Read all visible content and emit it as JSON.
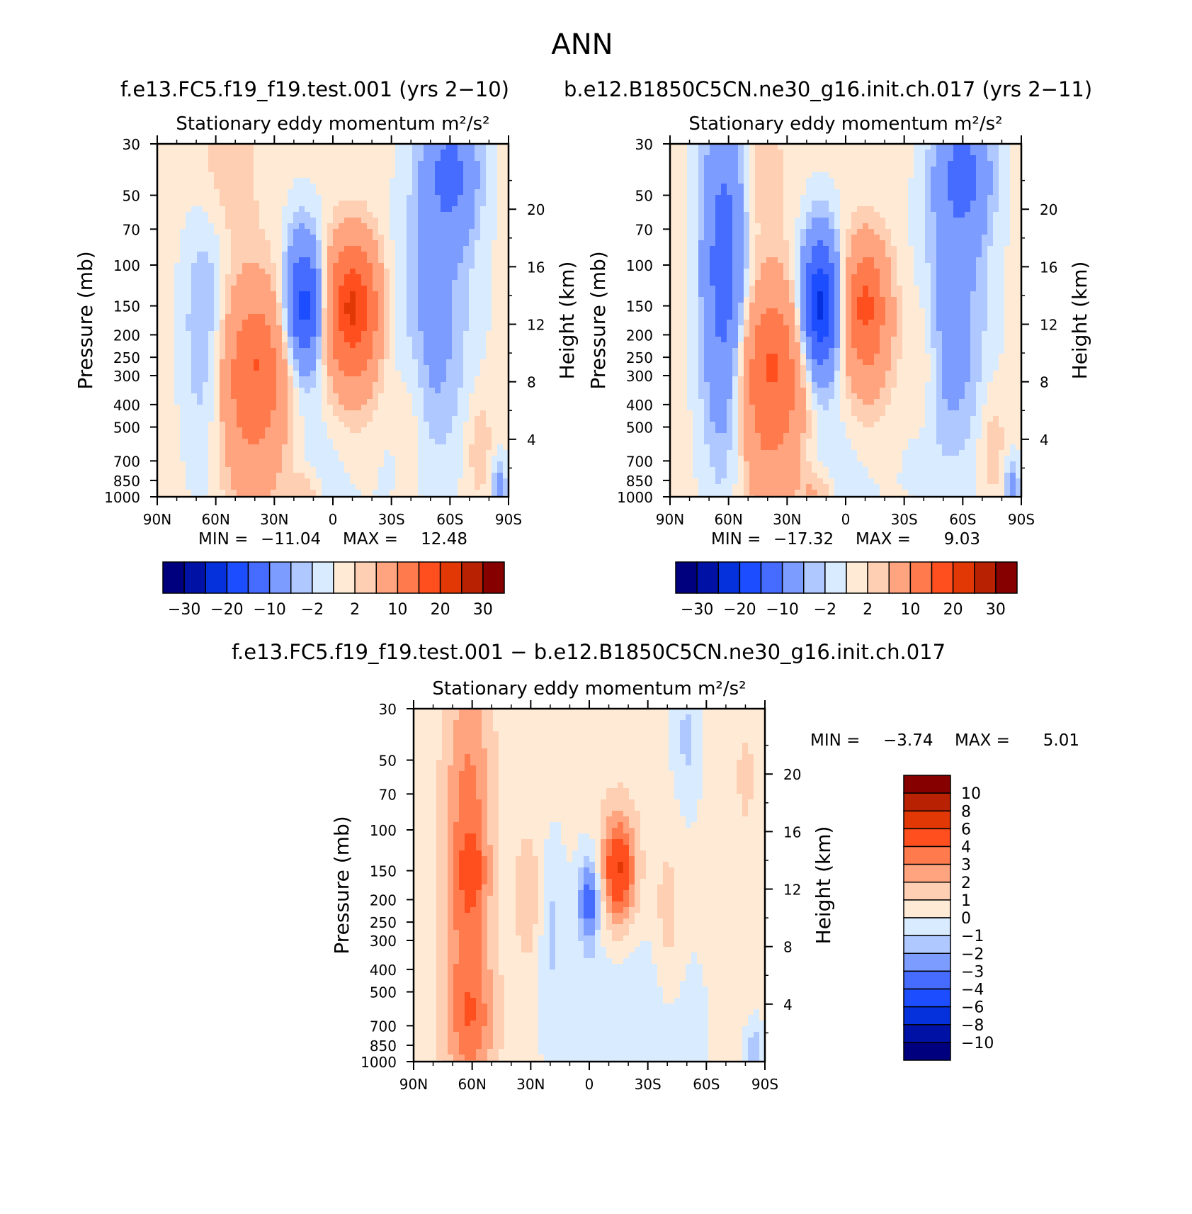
{
  "figure": {
    "title": "ANN",
    "case_label": "f.e13.FC5.f19_f19.test.001 (yrs 2−10)",
    "control_label": "b.e12.B1850C5CN.ne30_g16.init.ch.017 (yrs 2−11)",
    "diff_label": "f.e13.FC5.f19_f19.test.001 − b.e12.B1850C5CN.ne30_g16.init.ch.017"
  },
  "chart_data": [
    {
      "type": "heatmap",
      "title": "Stationary eddy momentum  m²/s²",
      "xlabel": "",
      "ylabel": "Pressure (mb)",
      "y2label": "Height (km)",
      "x_ticks": [
        "90N",
        "60N",
        "30N",
        "0",
        "30S",
        "60S",
        "90S"
      ],
      "x_values": [
        90,
        60,
        30,
        0,
        -30,
        -60,
        -90
      ],
      "y_ticks": [
        30,
        50,
        70,
        100,
        150,
        200,
        250,
        300,
        400,
        500,
        700,
        850,
        1000
      ],
      "y2_ticks": [
        20,
        16,
        12,
        8,
        4
      ],
      "ylim": [
        1000,
        30
      ],
      "min_label": "MIN =",
      "min_value": "−11.04",
      "max_label": "MAX =",
      "max_value": "12.48",
      "colorbar_labels": [
        "−30",
        "−20",
        "−10",
        "−2",
        "2",
        "10",
        "20",
        "30"
      ],
      "features": [
        {
          "lat": 14,
          "p": 150,
          "value": -11.04
        },
        {
          "lat": -10,
          "p": 150,
          "value": 12.48
        },
        {
          "lat": 40,
          "p": 260,
          "value": 8
        },
        {
          "lat": -60,
          "p": 40,
          "value": -6
        },
        {
          "lat": 65,
          "p": 150,
          "value": -4
        }
      ]
    },
    {
      "type": "heatmap",
      "title": "Stationary eddy momentum  m²/s²",
      "xlabel": "",
      "ylabel": "Pressure (mb)",
      "y2label": "Height (km)",
      "x_ticks": [
        "90N",
        "60N",
        "30N",
        "0",
        "30S",
        "60S",
        "90S"
      ],
      "x_values": [
        90,
        60,
        30,
        0,
        -30,
        -60,
        -90
      ],
      "y_ticks": [
        30,
        50,
        70,
        100,
        150,
        200,
        250,
        300,
        400,
        500,
        700,
        850,
        1000
      ],
      "y2_ticks": [
        20,
        16,
        12,
        8,
        4
      ],
      "ylim": [
        1000,
        30
      ],
      "min_label": "MIN =",
      "min_value": "−17.32",
      "max_label": "MAX =",
      "max_value": "9.03",
      "colorbar_labels": [
        "−30",
        "−20",
        "−10",
        "−2",
        "2",
        "10",
        "20",
        "30"
      ],
      "features": [
        {
          "lat": 13,
          "p": 150,
          "value": -17.32
        },
        {
          "lat": -10,
          "p": 150,
          "value": 9.03
        },
        {
          "lat": 38,
          "p": 260,
          "value": 8
        },
        {
          "lat": 62,
          "p": 100,
          "value": -8
        },
        {
          "lat": -60,
          "p": 40,
          "value": -6
        }
      ]
    },
    {
      "type": "heatmap",
      "title": "Stationary eddy momentum  m²/s²",
      "xlabel": "",
      "ylabel": "Pressure (mb)",
      "y2label": "Height (km)",
      "x_ticks": [
        "90N",
        "60N",
        "30N",
        "0",
        "30S",
        "60S",
        "90S"
      ],
      "x_values": [
        90,
        60,
        30,
        0,
        -30,
        -60,
        -90
      ],
      "y_ticks": [
        30,
        50,
        70,
        100,
        150,
        200,
        250,
        300,
        400,
        500,
        700,
        850,
        1000
      ],
      "y2_ticks": [
        20,
        16,
        12,
        8,
        4
      ],
      "ylim": [
        1000,
        30
      ],
      "min_label": "MIN =",
      "min_value": "−3.74",
      "max_label": "MAX =",
      "max_value": "5.01",
      "colorbar_labels": [
        "10",
        "8",
        "6",
        "4",
        "3",
        "2",
        "1",
        "0",
        "−1",
        "−2",
        "−3",
        "−4",
        "−6",
        "−8",
        "−10"
      ],
      "features": [
        {
          "lat": 60,
          "p": 150,
          "value": 4
        },
        {
          "lat": 0,
          "p": 200,
          "value": -3.74
        },
        {
          "lat": -15,
          "p": 150,
          "value": 5.01
        },
        {
          "lat": 30,
          "p": 200,
          "value": 1.5
        },
        {
          "lat": -40,
          "p": 250,
          "value": 1.5
        }
      ]
    }
  ],
  "colors": {
    "diverging_16": [
      "#00007f",
      "#0012a6",
      "#0531dc",
      "#1c4eff",
      "#466bff",
      "#7d9cff",
      "#afc8ff",
      "#d9ebff",
      "#ffebd5",
      "#ffcfb3",
      "#ffa47f",
      "#ff7b4e",
      "#ff4f1f",
      "#e13805",
      "#b82202",
      "#860000"
    ]
  }
}
